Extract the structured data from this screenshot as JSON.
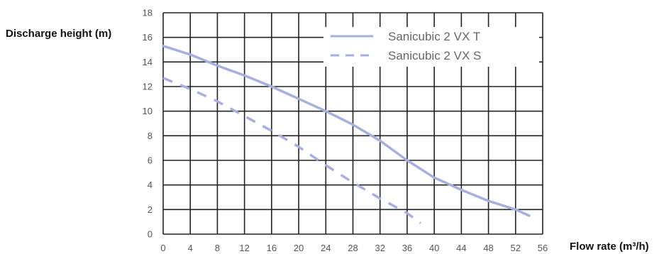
{
  "chart_data": {
    "type": "line",
    "xlabel": "Flow rate (m³/h)",
    "ylabel": "Discharge height (m)",
    "xlim": [
      0,
      56
    ],
    "ylim": [
      0,
      18
    ],
    "xticks": [
      "0",
      "4",
      "8",
      "12",
      "16",
      "20",
      "24",
      "28",
      "32",
      "36",
      "40",
      "44",
      "48",
      "52",
      "56"
    ],
    "yticks": [
      "0",
      "2",
      "4",
      "6",
      "8",
      "10",
      "12",
      "14",
      "16",
      "18"
    ],
    "grid": true,
    "legend_position": "top-right",
    "series": [
      {
        "name": "Sanicubic 2 VX T",
        "style": "solid",
        "color": "#a6b0dc",
        "x": [
          0,
          4,
          8,
          12,
          16,
          20,
          24,
          28,
          32,
          36,
          40,
          44,
          48,
          52,
          54
        ],
        "y": [
          15.3,
          14.6,
          13.7,
          12.9,
          12.0,
          11.0,
          10.0,
          8.9,
          7.6,
          6.0,
          4.6,
          3.6,
          2.7,
          2.0,
          1.5
        ]
      },
      {
        "name": "Sanicubic 2 VX S",
        "style": "dashed",
        "color": "#a6b0dc",
        "x": [
          0,
          4,
          8,
          12,
          16,
          20,
          24,
          28,
          32,
          36,
          38
        ],
        "y": [
          12.7,
          11.8,
          10.8,
          9.6,
          8.4,
          7.1,
          5.6,
          4.2,
          2.9,
          1.7,
          0.9
        ]
      }
    ]
  }
}
